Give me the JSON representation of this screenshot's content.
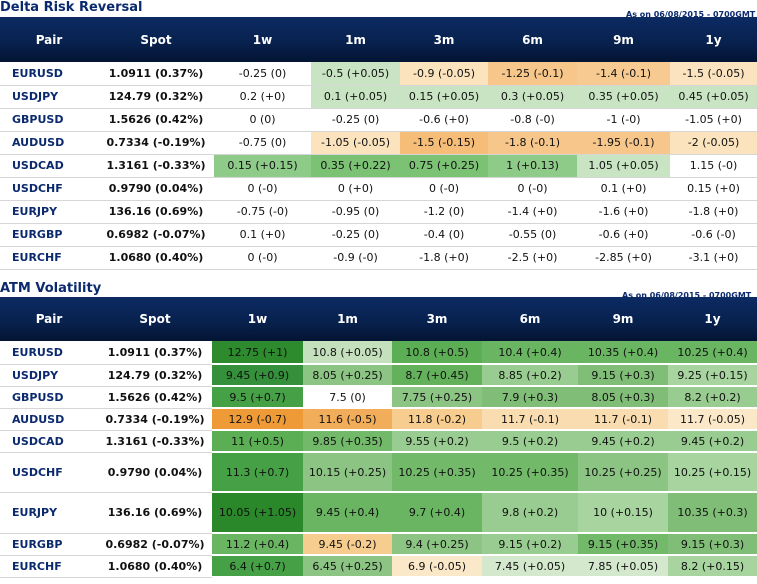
{
  "delta_risk_reversal": {
    "title": "Delta Risk Reversal",
    "as_of": "As on 06/08/2015 - 0700GMT",
    "columns": [
      "Pair",
      "Spot",
      "1w",
      "1m",
      "3m",
      "6m",
      "9m",
      "1y"
    ],
    "rows": [
      {
        "pair": "EURUSD",
        "spot": "1.0911 (0.37%)",
        "cells": [
          {
            "text": "-0.25 (0)",
            "color": "#ffffff"
          },
          {
            "text": "-0.5 (+0.05)",
            "color": "#c9e4c2"
          },
          {
            "text": "-0.9 (-0.05)",
            "color": "#fbe3bd"
          },
          {
            "text": "-1.25 (-0.1)",
            "color": "#f6c68a"
          },
          {
            "text": "-1.4 (-0.1)",
            "color": "#f7ca91"
          },
          {
            "text": "-1.5 (-0.05)",
            "color": "#fbe3c0"
          }
        ]
      },
      {
        "pair": "USDJPY",
        "spot": "124.79 (0.32%)",
        "cells": [
          {
            "text": "0.2 (+0)",
            "color": "#ffffff"
          },
          {
            "text": "0.1 (+0.05)",
            "color": "#c9e4c2"
          },
          {
            "text": "0.15 (+0.05)",
            "color": "#c9e4c2"
          },
          {
            "text": "0.3 (+0.05)",
            "color": "#c9e4c2"
          },
          {
            "text": "0.35 (+0.05)",
            "color": "#c9e4c2"
          },
          {
            "text": "0.45 (+0.05)",
            "color": "#c9e4c2"
          }
        ]
      },
      {
        "pair": "GBPUSD",
        "spot": "1.5626 (0.42%)",
        "cells": [
          {
            "text": "0 (0)",
            "color": "#ffffff"
          },
          {
            "text": "-0.25 (0)",
            "color": "#ffffff"
          },
          {
            "text": "-0.6 (+0)",
            "color": "#ffffff"
          },
          {
            "text": "-0.8 (-0)",
            "color": "#ffffff"
          },
          {
            "text": "-1 (-0)",
            "color": "#ffffff"
          },
          {
            "text": "-1.05 (+0)",
            "color": "#ffffff"
          }
        ]
      },
      {
        "pair": "AUDUSD",
        "spot": "0.7334 (-0.19%)",
        "cells": [
          {
            "text": "-0.75 (0)",
            "color": "#ffffff"
          },
          {
            "text": "-1.05 (-0.05)",
            "color": "#fbe3bd"
          },
          {
            "text": "-1.5 (-0.15)",
            "color": "#f5bd78"
          },
          {
            "text": "-1.8 (-0.1)",
            "color": "#f6c68a"
          },
          {
            "text": "-1.95 (-0.1)",
            "color": "#f6c68a"
          },
          {
            "text": "-2 (-0.05)",
            "color": "#fbe3bd"
          }
        ]
      },
      {
        "pair": "USDCAD",
        "spot": "1.3161 (-0.33%)",
        "cells": [
          {
            "text": "0.15 (+0.15)",
            "color": "#8fcb88"
          },
          {
            "text": "0.35 (+0.22)",
            "color": "#7cc275"
          },
          {
            "text": "0.75 (+0.25)",
            "color": "#7cc275"
          },
          {
            "text": "1 (+0.13)",
            "color": "#8fcb88"
          },
          {
            "text": "1.05 (+0.05)",
            "color": "#c9e4c2"
          },
          {
            "text": "1.15 (-0)",
            "color": "#ffffff"
          }
        ]
      },
      {
        "pair": "USDCHF",
        "spot": "0.9790 (0.04%)",
        "cells": [
          {
            "text": "0 (-0)",
            "color": "#ffffff"
          },
          {
            "text": "0 (+0)",
            "color": "#ffffff"
          },
          {
            "text": "0 (-0)",
            "color": "#ffffff"
          },
          {
            "text": "0 (-0)",
            "color": "#ffffff"
          },
          {
            "text": "0.1 (+0)",
            "color": "#ffffff"
          },
          {
            "text": "0.15 (+0)",
            "color": "#ffffff"
          }
        ]
      },
      {
        "pair": "EURJPY",
        "spot": "136.16 (0.69%)",
        "cells": [
          {
            "text": "-0.75 (-0)",
            "color": "#ffffff"
          },
          {
            "text": "-0.95 (0)",
            "color": "#ffffff"
          },
          {
            "text": "-1.2 (0)",
            "color": "#ffffff"
          },
          {
            "text": "-1.4 (+0)",
            "color": "#ffffff"
          },
          {
            "text": "-1.6 (+0)",
            "color": "#ffffff"
          },
          {
            "text": "-1.8 (+0)",
            "color": "#ffffff"
          }
        ]
      },
      {
        "pair": "EURGBP",
        "spot": "0.6982 (-0.07%)",
        "cells": [
          {
            "text": "0.1 (+0)",
            "color": "#ffffff"
          },
          {
            "text": "-0.25 (0)",
            "color": "#ffffff"
          },
          {
            "text": "-0.4 (0)",
            "color": "#ffffff"
          },
          {
            "text": "-0.55 (0)",
            "color": "#ffffff"
          },
          {
            "text": "-0.6 (+0)",
            "color": "#ffffff"
          },
          {
            "text": "-0.6 (-0)",
            "color": "#ffffff"
          }
        ]
      },
      {
        "pair": "EURCHF",
        "spot": "1.0680 (0.40%)",
        "cells": [
          {
            "text": "0 (-0)",
            "color": "#ffffff"
          },
          {
            "text": "-0.9 (-0)",
            "color": "#ffffff"
          },
          {
            "text": "-1.8 (+0)",
            "color": "#ffffff"
          },
          {
            "text": "-2.5 (+0)",
            "color": "#ffffff"
          },
          {
            "text": "-2.85 (+0)",
            "color": "#ffffff"
          },
          {
            "text": "-3.1 (+0)",
            "color": "#ffffff"
          }
        ]
      }
    ]
  },
  "atm_volatility": {
    "title": "ATM Volatility",
    "as_of": "As on 06/08/2015 - 0700GMT",
    "columns": [
      "Pair",
      "Spot",
      "1w",
      "1m",
      "3m",
      "6m",
      "9m",
      "1y"
    ],
    "rows": [
      {
        "pair": "EURUSD",
        "spot": "1.0911 (0.37%)",
        "cells": [
          {
            "text": "12.75 (+1)",
            "color": "#2d8a2d"
          },
          {
            "text": "10.8 (+0.05)",
            "color": "#c5e0bd"
          },
          {
            "text": "10.8 (+0.5)",
            "color": "#5cae55"
          },
          {
            "text": "10.4 (+0.4)",
            "color": "#6ab562"
          },
          {
            "text": "10.35 (+0.4)",
            "color": "#6ab562"
          },
          {
            "text": "10.25 (+0.4)",
            "color": "#6ab562"
          }
        ]
      },
      {
        "pair": "USDJPY",
        "spot": "124.79 (0.32%)",
        "cells": [
          {
            "text": "9.45 (+0.9)",
            "color": "#34903a"
          },
          {
            "text": "8.05 (+0.25)",
            "color": "#8cc583"
          },
          {
            "text": "8.7 (+0.45)",
            "color": "#63b25b"
          },
          {
            "text": "8.85 (+0.2)",
            "color": "#99cc90"
          },
          {
            "text": "9.15 (+0.3)",
            "color": "#80be77"
          },
          {
            "text": "9.25 (+0.15)",
            "color": "#a7d49f"
          }
        ]
      },
      {
        "pair": "GBPUSD",
        "spot": "1.5626 (0.42%)",
        "cells": [
          {
            "text": "9.5 (+0.7)",
            "color": "#45a046"
          },
          {
            "text": "7.5 (0)",
            "color": "#ffffff"
          },
          {
            "text": "7.75 (+0.25)",
            "color": "#8cc583"
          },
          {
            "text": "7.9 (+0.3)",
            "color": "#80be77"
          },
          {
            "text": "8.05 (+0.3)",
            "color": "#80be77"
          },
          {
            "text": "8.2 (+0.2)",
            "color": "#99cc90"
          }
        ]
      },
      {
        "pair": "AUDUSD",
        "spot": "0.7334 (-0.19%)",
        "cells": [
          {
            "text": "12.9 (-0.7)",
            "color": "#ee9a36"
          },
          {
            "text": "11.6 (-0.5)",
            "color": "#f2ad5a"
          },
          {
            "text": "11.8 (-0.2)",
            "color": "#f6cd8e"
          },
          {
            "text": "11.7 (-0.1)",
            "color": "#f9dcaf"
          },
          {
            "text": "11.7 (-0.1)",
            "color": "#f9dcaf"
          },
          {
            "text": "11.7 (-0.05)",
            "color": "#fbe8c8"
          }
        ]
      },
      {
        "pair": "USDCAD",
        "spot": "1.3161 (-0.33%)",
        "cells": [
          {
            "text": "11 (+0.5)",
            "color": "#5cae55"
          },
          {
            "text": "9.85 (+0.35)",
            "color": "#72b96a"
          },
          {
            "text": "9.55 (+0.2)",
            "color": "#99cc90"
          },
          {
            "text": "9.5 (+0.2)",
            "color": "#99cc90"
          },
          {
            "text": "9.45 (+0.2)",
            "color": "#99cc90"
          },
          {
            "text": "9.45 (+0.2)",
            "color": "#99cc90"
          }
        ]
      },
      {
        "pair": "USDCHF",
        "spot": "0.9790 (0.04%)",
        "cells": [
          {
            "text": "11.3 (+0.7)",
            "color": "#45a046"
          },
          {
            "text": "10.15 (+0.25)",
            "color": "#8cc583"
          },
          {
            "text": "10.25 (+0.35)",
            "color": "#72b96a"
          },
          {
            "text": "10.25 (+0.35)",
            "color": "#72b96a"
          },
          {
            "text": "10.25 (+0.25)",
            "color": "#8cc583"
          },
          {
            "text": "10.25 (+0.15)",
            "color": "#a7d49f"
          }
        ]
      },
      {
        "pair": "EURJPY",
        "spot": "136.16 (0.69%)",
        "cells": [
          {
            "text": "10.05 (+1.05)",
            "color": "#2a872a"
          },
          {
            "text": "9.45 (+0.4)",
            "color": "#6ab562"
          },
          {
            "text": "9.7 (+0.4)",
            "color": "#6ab562"
          },
          {
            "text": "9.8 (+0.2)",
            "color": "#99cc90"
          },
          {
            "text": "10 (+0.15)",
            "color": "#a7d49f"
          },
          {
            "text": "10.35 (+0.3)",
            "color": "#80be77"
          }
        ]
      },
      {
        "pair": "EURGBP",
        "spot": "0.6982 (-0.07%)",
        "cells": [
          {
            "text": "11.2 (+0.4)",
            "color": "#6ab562"
          },
          {
            "text": "9.45 (-0.2)",
            "color": "#f6cd8e"
          },
          {
            "text": "9.4 (+0.25)",
            "color": "#8cc583"
          },
          {
            "text": "9.15 (+0.2)",
            "color": "#99cc90"
          },
          {
            "text": "9.15 (+0.35)",
            "color": "#72b96a"
          },
          {
            "text": "9.15 (+0.3)",
            "color": "#80be77"
          }
        ]
      },
      {
        "pair": "EURCHF",
        "spot": "1.0680 (0.40%)",
        "cells": [
          {
            "text": "6.4 (+0.7)",
            "color": "#45a046"
          },
          {
            "text": "6.45 (+0.25)",
            "color": "#8cc583"
          },
          {
            "text": "6.9 (-0.05)",
            "color": "#fbe8c8"
          },
          {
            "text": "7.45 (+0.05)",
            "color": "#d3e8cc"
          },
          {
            "text": "7.85 (+0.05)",
            "color": "#d3e8cc"
          },
          {
            "text": "8.2 (+0.15)",
            "color": "#a7d49f"
          }
        ]
      }
    ]
  }
}
